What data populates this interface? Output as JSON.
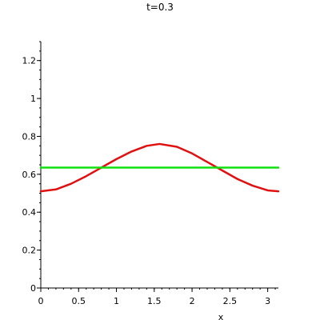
{
  "chart_data": {
    "type": "line",
    "title": "t=0.3",
    "xlabel": "x",
    "ylabel": "",
    "xlim": [
      0,
      3.1416
    ],
    "ylim": [
      0,
      1.3
    ],
    "xticks": [
      0,
      0.5,
      1,
      1.5,
      2,
      2.5,
      3
    ],
    "xtick_labels": [
      "0",
      "0.5",
      "1",
      "1.5",
      "2",
      "2.5",
      "3"
    ],
    "yticks": [
      0,
      0.2,
      0.4,
      0.6,
      0.8,
      1,
      1.2
    ],
    "ytick_labels": [
      "0",
      "0.2",
      "0.4",
      "0.6",
      "0.8",
      "1",
      "1.2"
    ],
    "grid": false,
    "legend": "none",
    "series": [
      {
        "color": "#e01010",
        "x": [
          0,
          0.2,
          0.4,
          0.6,
          0.8,
          1.0,
          1.2,
          1.4,
          1.5708,
          1.8,
          2.0,
          2.2,
          2.4,
          2.6,
          2.8,
          3.0,
          3.1416
        ],
        "y": [
          0.51,
          0.52,
          0.55,
          0.59,
          0.635,
          0.68,
          0.72,
          0.75,
          0.76,
          0.745,
          0.71,
          0.665,
          0.62,
          0.575,
          0.54,
          0.515,
          0.51
        ]
      },
      {
        "color": "#10e010",
        "x": [
          0,
          3.1416
        ],
        "y": [
          0.635,
          0.635
        ]
      }
    ]
  }
}
